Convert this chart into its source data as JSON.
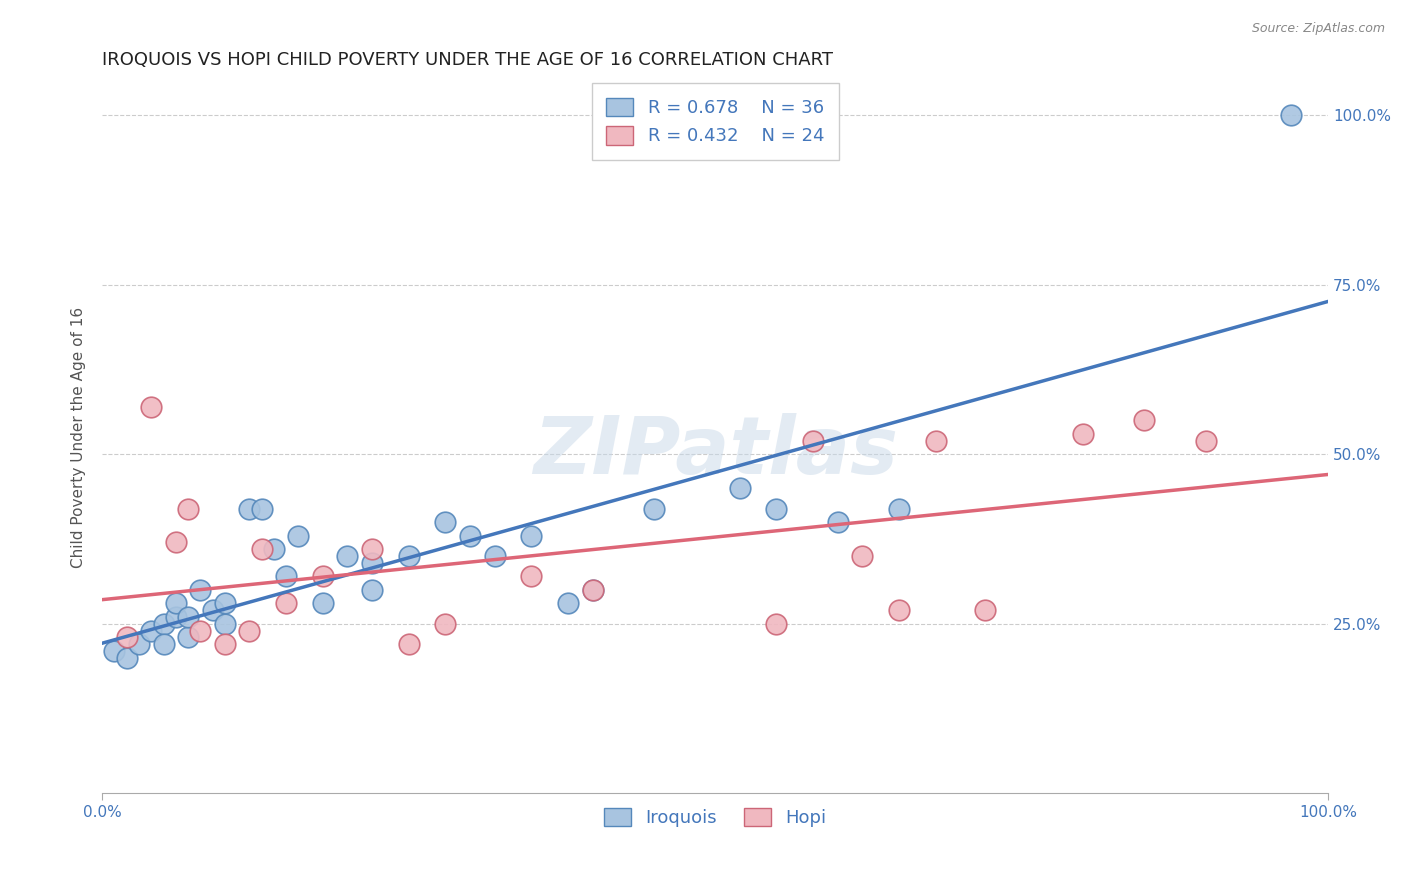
{
  "title": "IROQUOIS VS HOPI CHILD POVERTY UNDER THE AGE OF 16 CORRELATION CHART",
  "source": "Source: ZipAtlas.com",
  "ylabel": "Child Poverty Under the Age of 16",
  "xlim": [
    0.0,
    1.0
  ],
  "ylim": [
    0.0,
    1.05
  ],
  "xtick_labels": [
    "0.0%",
    "100.0%"
  ],
  "ytick_labels": [
    "25.0%",
    "50.0%",
    "75.0%",
    "100.0%"
  ],
  "ytick_positions": [
    0.25,
    0.5,
    0.75,
    1.0
  ],
  "grid_color": "#cccccc",
  "background_color": "#ffffff",
  "watermark": "ZIPatlas",
  "iroquois_color": "#a8c4e0",
  "iroquois_edge_color": "#5588bb",
  "hopi_color": "#f0b8c0",
  "hopi_edge_color": "#cc6677",
  "iroquois_line_color": "#4477bb",
  "hopi_line_color": "#dd6677",
  "legend_text_color": "#4477bb",
  "R_iroquois": 0.678,
  "N_iroquois": 36,
  "R_hopi": 0.432,
  "N_hopi": 24,
  "iroquois_x": [
    0.01,
    0.02,
    0.03,
    0.04,
    0.05,
    0.05,
    0.06,
    0.06,
    0.07,
    0.07,
    0.08,
    0.09,
    0.1,
    0.1,
    0.12,
    0.13,
    0.14,
    0.15,
    0.16,
    0.18,
    0.2,
    0.22,
    0.22,
    0.25,
    0.28,
    0.3,
    0.32,
    0.35,
    0.38,
    0.4,
    0.45,
    0.52,
    0.55,
    0.6,
    0.65,
    0.97
  ],
  "iroquois_y": [
    0.21,
    0.2,
    0.22,
    0.24,
    0.25,
    0.22,
    0.26,
    0.28,
    0.23,
    0.26,
    0.3,
    0.27,
    0.25,
    0.28,
    0.42,
    0.42,
    0.36,
    0.32,
    0.38,
    0.28,
    0.35,
    0.34,
    0.3,
    0.35,
    0.4,
    0.38,
    0.35,
    0.38,
    0.28,
    0.3,
    0.42,
    0.45,
    0.42,
    0.4,
    0.42,
    1.0
  ],
  "hopi_x": [
    0.02,
    0.04,
    0.06,
    0.07,
    0.08,
    0.1,
    0.12,
    0.13,
    0.15,
    0.18,
    0.22,
    0.25,
    0.28,
    0.35,
    0.4,
    0.55,
    0.58,
    0.62,
    0.65,
    0.68,
    0.72,
    0.8,
    0.85,
    0.9
  ],
  "hopi_y": [
    0.23,
    0.57,
    0.37,
    0.42,
    0.24,
    0.22,
    0.24,
    0.36,
    0.28,
    0.32,
    0.36,
    0.22,
    0.25,
    0.32,
    0.3,
    0.25,
    0.52,
    0.35,
    0.27,
    0.52,
    0.27,
    0.53,
    0.55,
    0.52
  ],
  "title_fontsize": 13,
  "axis_label_fontsize": 11,
  "tick_fontsize": 11,
  "legend_fontsize": 13
}
